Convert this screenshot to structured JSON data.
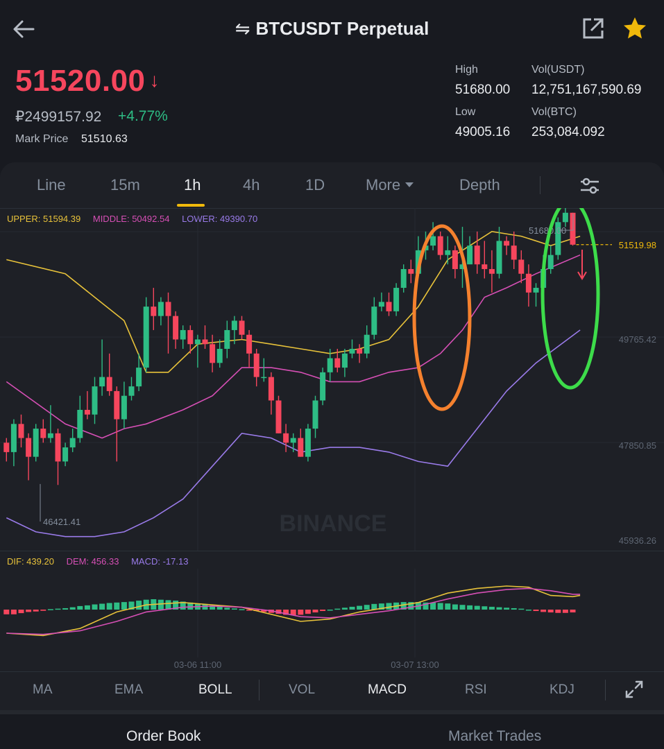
{
  "header": {
    "title": "BTCUSDT Perpetual",
    "swap_glyph": "⇋",
    "back_icon": "arrow-left-icon",
    "share_icon": "share-external-icon",
    "favorite_icon": "star-icon"
  },
  "ticker": {
    "last_price": "51520.00",
    "direction_glyph": "↓",
    "fiat_price": "₽2499157.92",
    "change_pct": "+4.77%",
    "mark_price_label": "Mark Price",
    "mark_price": "51510.63",
    "stats": [
      {
        "label": "High",
        "value": "51680.00"
      },
      {
        "label": "Vol(USDT)",
        "value": "12,751,167,590.69"
      },
      {
        "label": "Low",
        "value": "49005.16"
      },
      {
        "label": "Vol(BTC)",
        "value": "253,084.092"
      }
    ]
  },
  "intervals": [
    {
      "label": "Line",
      "active": false
    },
    {
      "label": "15m",
      "active": false
    },
    {
      "label": "1h",
      "active": true
    },
    {
      "label": "4h",
      "active": false
    },
    {
      "label": "1D",
      "active": false
    },
    {
      "label": "More",
      "active": false
    },
    {
      "label": "Depth",
      "active": false
    }
  ],
  "boll_legend": {
    "upper": "UPPER: 51594.39",
    "middle": "MIDDLE: 50492.54",
    "lower": "LOWER: 49390.70"
  },
  "price_axis": [
    "49765.42",
    "47850.85",
    "45936.26"
  ],
  "last_price_tag": "51519.98",
  "high_marker": "51680.00",
  "low_marker": "46421.41",
  "watermark": "BINANCE",
  "macd_legend": {
    "dif": "DIF: 439.20",
    "dem": "DEM: 456.33",
    "macd": "MACD: -17.13"
  },
  "time_axis": [
    "03-06 11:00",
    "03-07 13:00"
  ],
  "indicators": [
    {
      "label": "MA",
      "active": false
    },
    {
      "label": "EMA",
      "active": false
    },
    {
      "label": "BOLL",
      "active": true
    },
    {
      "label": "VOL",
      "active": false
    },
    {
      "label": "MACD",
      "active": true
    },
    {
      "label": "RSI",
      "active": false
    },
    {
      "label": "KDJ",
      "active": false
    }
  ],
  "bottom_tabs": [
    {
      "label": "Order Book",
      "active": true
    },
    {
      "label": "Market Trades",
      "active": false
    }
  ],
  "colors": {
    "up": "#2ebd85",
    "down": "#f6465d",
    "upper_band": "#e8c23a",
    "middle_band": "#d64fb5",
    "lower_band": "#9a7bea",
    "accent": "#f0b90b",
    "annotation_orange": "#f5812e",
    "annotation_green": "#3ddc4a"
  },
  "chart_data": {
    "type": "candlestick",
    "price_range": [
      45000,
      52300
    ],
    "candles": [
      [
        47300,
        47100,
        47400,
        46900
      ],
      [
        47100,
        47700,
        47800,
        46800
      ],
      [
        47700,
        47400,
        47900,
        47200
      ],
      [
        47400,
        47000,
        47500,
        46500
      ],
      [
        47000,
        47600,
        47700,
        46900
      ],
      [
        47600,
        47400,
        47800,
        47300
      ],
      [
        47400,
        47500,
        48100,
        47300
      ],
      [
        47500,
        46900,
        47600,
        46400
      ],
      [
        46900,
        47200,
        47300,
        46800
      ],
      [
        47200,
        47400,
        47600,
        47100
      ],
      [
        47400,
        48000,
        48300,
        47300
      ],
      [
        48000,
        47900,
        48400,
        47800
      ],
      [
        47900,
        48500,
        48700,
        47700
      ],
      [
        48500,
        48700,
        49500,
        48300
      ],
      [
        48700,
        48400,
        49200,
        48300
      ],
      [
        48400,
        47800,
        48500,
        46900
      ],
      [
        47800,
        48300,
        48600,
        47600
      ],
      [
        48300,
        48500,
        48700,
        48200
      ],
      [
        48500,
        48900,
        49200,
        48400
      ],
      [
        48900,
        50200,
        50400,
        48800
      ],
      [
        50200,
        50000,
        50600,
        49700
      ],
      [
        50000,
        50300,
        50400,
        49800
      ],
      [
        50300,
        50000,
        50500,
        49200
      ],
      [
        50000,
        49500,
        50100,
        49300
      ],
      [
        49500,
        49700,
        49800,
        49300
      ],
      [
        49700,
        49400,
        49800,
        49200
      ],
      [
        49400,
        49500,
        49600,
        48900
      ],
      [
        49500,
        49400,
        49800,
        49300
      ],
      [
        49400,
        49000,
        49600,
        48800
      ],
      [
        49000,
        49300,
        49500,
        48900
      ],
      [
        49300,
        49700,
        49900,
        49100
      ],
      [
        49700,
        49900,
        50000,
        49400
      ],
      [
        49900,
        49600,
        50000,
        49500
      ],
      [
        49600,
        49200,
        49700,
        48900
      ],
      [
        49200,
        48700,
        49300,
        48500
      ],
      [
        48700,
        48700,
        49100,
        48600
      ],
      [
        48700,
        48200,
        48800,
        47900
      ],
      [
        48200,
        47500,
        48300,
        47500
      ],
      [
        47500,
        47300,
        47700,
        47100
      ],
      [
        47300,
        47400,
        47500,
        47100
      ],
      [
        47400,
        47000,
        47600,
        47000
      ],
      [
        47000,
        47600,
        47700,
        46900
      ],
      [
        47600,
        48200,
        48300,
        47400
      ],
      [
        48200,
        48800,
        48900,
        48100
      ],
      [
        48800,
        49100,
        49300,
        48600
      ],
      [
        49100,
        48900,
        49300,
        48800
      ],
      [
        48900,
        49200,
        49300,
        48700
      ],
      [
        49200,
        49300,
        49500,
        49100
      ],
      [
        49300,
        49200,
        49400,
        49000
      ],
      [
        49200,
        49600,
        49800,
        49100
      ],
      [
        49600,
        50200,
        50400,
        49500
      ],
      [
        50200,
        50300,
        50500,
        50100
      ],
      [
        50300,
        50100,
        50500,
        50000
      ],
      [
        50100,
        50600,
        50700,
        50000
      ],
      [
        50600,
        51000,
        51100,
        50500
      ],
      [
        51000,
        50900,
        51200,
        50700
      ],
      [
        50900,
        51400,
        51700,
        50900
      ],
      [
        51400,
        51500,
        51800,
        51200
      ],
      [
        51500,
        51700,
        52000,
        51400
      ],
      [
        51700,
        51300,
        51800,
        51200
      ],
      [
        51300,
        51400,
        51700,
        51100
      ],
      [
        51400,
        51000,
        51500,
        50800
      ],
      [
        51000,
        51100,
        51900,
        50600
      ],
      [
        51100,
        51500,
        51700,
        51300
      ],
      [
        51500,
        51100,
        51800,
        50900
      ],
      [
        51100,
        51000,
        51600,
        50800
      ],
      [
        51000,
        50900,
        51400,
        50500
      ],
      [
        50900,
        51600,
        51900,
        50800
      ],
      [
        51600,
        51500,
        51700,
        51300
      ],
      [
        51500,
        51200,
        51800,
        51000
      ],
      [
        51200,
        50900,
        51400,
        50700
      ],
      [
        50900,
        50500,
        51100,
        50200
      ],
      [
        50500,
        50600,
        50700,
        50200
      ],
      [
        50600,
        51000,
        51300,
        50400
      ],
      [
        51000,
        51300,
        51500,
        50900
      ],
      [
        51300,
        52000,
        52100,
        51200
      ],
      [
        52000,
        52200,
        52300,
        51900
      ],
      [
        52200,
        51520,
        52200,
        51500
      ]
    ],
    "boll": {
      "upper": [
        [
          0,
          51200
        ],
        [
          8,
          50900
        ],
        [
          12,
          50400
        ],
        [
          16,
          49900
        ],
        [
          19,
          48800
        ],
        [
          22,
          48800
        ],
        [
          26,
          49400
        ],
        [
          32,
          49500
        ],
        [
          36,
          49400
        ],
        [
          40,
          49300
        ],
        [
          44,
          49200
        ],
        [
          48,
          49300
        ],
        [
          52,
          49500
        ],
        [
          56,
          50200
        ],
        [
          60,
          51200
        ],
        [
          64,
          51600
        ],
        [
          66,
          51800
        ],
        [
          70,
          51700
        ],
        [
          74,
          51500
        ],
        [
          78,
          51700
        ]
      ],
      "middle": [
        [
          0,
          48600
        ],
        [
          8,
          47700
        ],
        [
          13,
          47400
        ],
        [
          16,
          47600
        ],
        [
          19,
          47700
        ],
        [
          24,
          48000
        ],
        [
          28,
          48300
        ],
        [
          32,
          48900
        ],
        [
          36,
          48900
        ],
        [
          40,
          48800
        ],
        [
          44,
          48600
        ],
        [
          48,
          48600
        ],
        [
          52,
          48800
        ],
        [
          56,
          48900
        ],
        [
          59,
          49200
        ],
        [
          62,
          49700
        ],
        [
          65,
          50400
        ],
        [
          68,
          50600
        ],
        [
          72,
          50900
        ],
        [
          78,
          51300
        ]
      ],
      "lower": [
        [
          0,
          45700
        ],
        [
          4,
          45400
        ],
        [
          8,
          45300
        ],
        [
          12,
          45300
        ],
        [
          16,
          45400
        ],
        [
          20,
          45700
        ],
        [
          24,
          46100
        ],
        [
          28,
          46800
        ],
        [
          32,
          47500
        ],
        [
          36,
          47400
        ],
        [
          40,
          47100
        ],
        [
          44,
          47200
        ],
        [
          48,
          47200
        ],
        [
          52,
          47100
        ],
        [
          56,
          46900
        ],
        [
          60,
          46800
        ],
        [
          64,
          47600
        ],
        [
          68,
          48400
        ],
        [
          72,
          49000
        ],
        [
          78,
          49700
        ]
      ]
    },
    "macd": {
      "dif": [
        [
          0,
          -1.0
        ],
        [
          5,
          -1.1
        ],
        [
          10,
          -0.8
        ],
        [
          15,
          -0.1
        ],
        [
          19,
          0.2
        ],
        [
          24,
          0.3
        ],
        [
          28,
          0.2
        ],
        [
          32,
          0.1
        ],
        [
          36,
          -0.2
        ],
        [
          40,
          -0.5
        ],
        [
          44,
          -0.4
        ],
        [
          48,
          -0.1
        ],
        [
          52,
          0.1
        ],
        [
          56,
          0.3
        ],
        [
          60,
          0.7
        ],
        [
          64,
          0.9
        ],
        [
          68,
          1.0
        ],
        [
          71,
          0.95
        ],
        [
          74,
          0.6
        ],
        [
          77,
          0.55
        ],
        [
          78,
          0.6
        ]
      ],
      "dem": [
        [
          0,
          -1.0
        ],
        [
          5,
          -1.05
        ],
        [
          10,
          -0.9
        ],
        [
          15,
          -0.5
        ],
        [
          19,
          -0.1
        ],
        [
          24,
          0.1
        ],
        [
          28,
          0.15
        ],
        [
          32,
          0.1
        ],
        [
          36,
          -0.05
        ],
        [
          40,
          -0.3
        ],
        [
          44,
          -0.35
        ],
        [
          48,
          -0.2
        ],
        [
          52,
          -0.05
        ],
        [
          56,
          0.15
        ],
        [
          60,
          0.45
        ],
        [
          64,
          0.7
        ],
        [
          68,
          0.85
        ],
        [
          71,
          0.9
        ],
        [
          74,
          0.8
        ],
        [
          77,
          0.65
        ],
        [
          78,
          0.65
        ]
      ],
      "hist": [
        -0.2,
        -0.2,
        -0.15,
        -0.1,
        -0.08,
        -0.05,
        0.02,
        0.04,
        0.06,
        0.1,
        0.15,
        0.18,
        0.22,
        0.25,
        0.28,
        0.3,
        0.32,
        0.34,
        0.38,
        0.42,
        0.44,
        0.42,
        0.4,
        0.38,
        0.34,
        0.3,
        0.26,
        0.22,
        0.18,
        0.12,
        0.08,
        0.05,
        0.02,
        -0.02,
        -0.06,
        -0.1,
        -0.14,
        -0.18,
        -0.22,
        -0.24,
        -0.22,
        -0.18,
        -0.12,
        -0.06,
        0.0,
        0.04,
        0.08,
        0.12,
        0.16,
        0.2,
        0.24,
        0.26,
        0.28,
        0.3,
        0.32,
        0.32,
        0.32,
        0.3,
        0.3,
        0.28,
        0.26,
        0.22,
        0.2,
        0.18,
        0.16,
        0.14,
        0.12,
        0.1,
        0.08,
        0.06,
        0.04,
        0.0,
        -0.06,
        -0.1,
        -0.12,
        -0.14,
        -0.14,
        -0.12
      ]
    }
  }
}
